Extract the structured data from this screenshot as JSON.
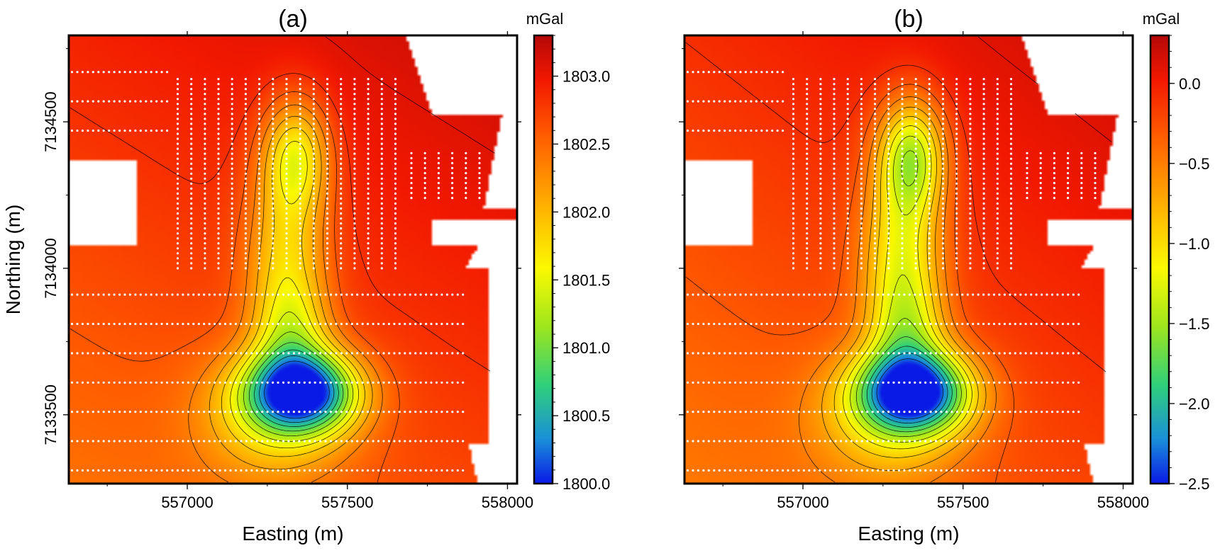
{
  "chart_data": [
    {
      "type": "heatmap",
      "title": "(a)",
      "xlabel": "Easting (m)",
      "ylabel": "Northing (m)",
      "xlim": [
        556630,
        558030
      ],
      "ylim": [
        7133265,
        7134795
      ],
      "x_ticks": [
        557000,
        557500,
        558000
      ],
      "x_tick_labels": [
        "557000",
        "557500",
        "558000"
      ],
      "y_ticks": [
        7133500,
        7134000,
        7134500
      ],
      "y_tick_labels": [
        "7133500",
        "7134000",
        "7134500"
      ],
      "colorbar": {
        "unit": "mGal",
        "range": [
          1800.0,
          1803.3
        ],
        "ticks": [
          1800.0,
          1800.5,
          1801.0,
          1801.5,
          1802.0,
          1802.5,
          1803.0
        ],
        "tick_labels": [
          "1800.0",
          "1800.5",
          "1801.0",
          "1801.5",
          "1802.0",
          "1802.5",
          "1803.0"
        ]
      },
      "anomalies": [
        {
          "name": "northern-low",
          "x": 557340,
          "y": 7134390,
          "value": 1801.65
        },
        {
          "name": "southern-low",
          "x": 557390,
          "y": 7133580,
          "value": 1800.25
        }
      ],
      "background_value": 1802.8,
      "stations": "white dotted survey lines",
      "contours": "black contour lines"
    },
    {
      "type": "heatmap",
      "title": "(b)",
      "xlabel": "Easting (m)",
      "ylabel": "",
      "xlim": [
        556630,
        558030
      ],
      "ylim": [
        7133265,
        7134795
      ],
      "x_ticks": [
        557000,
        557500,
        558000
      ],
      "x_tick_labels": [
        "557000",
        "557500",
        "558000"
      ],
      "y_ticks": [
        7133500,
        7134000,
        7134500
      ],
      "y_tick_labels": [],
      "colorbar": {
        "unit": "mGal",
        "range": [
          -2.5,
          0.3
        ],
        "ticks": [
          -2.5,
          -2.0,
          -1.5,
          -1.0,
          -0.5,
          0.0
        ],
        "tick_labels": [
          "−2.5",
          "−2.0",
          "−1.5",
          "−1.0",
          "−0.5",
          "0.0"
        ]
      },
      "anomalies": [
        {
          "name": "northern-low",
          "x": 557340,
          "y": 7134390,
          "value": -1.35
        },
        {
          "name": "southern-low",
          "x": 557380,
          "y": 7133580,
          "value": -2.3
        }
      ],
      "background_value": -0.15,
      "stations": "white dotted survey lines",
      "contours": "black contour lines"
    }
  ]
}
